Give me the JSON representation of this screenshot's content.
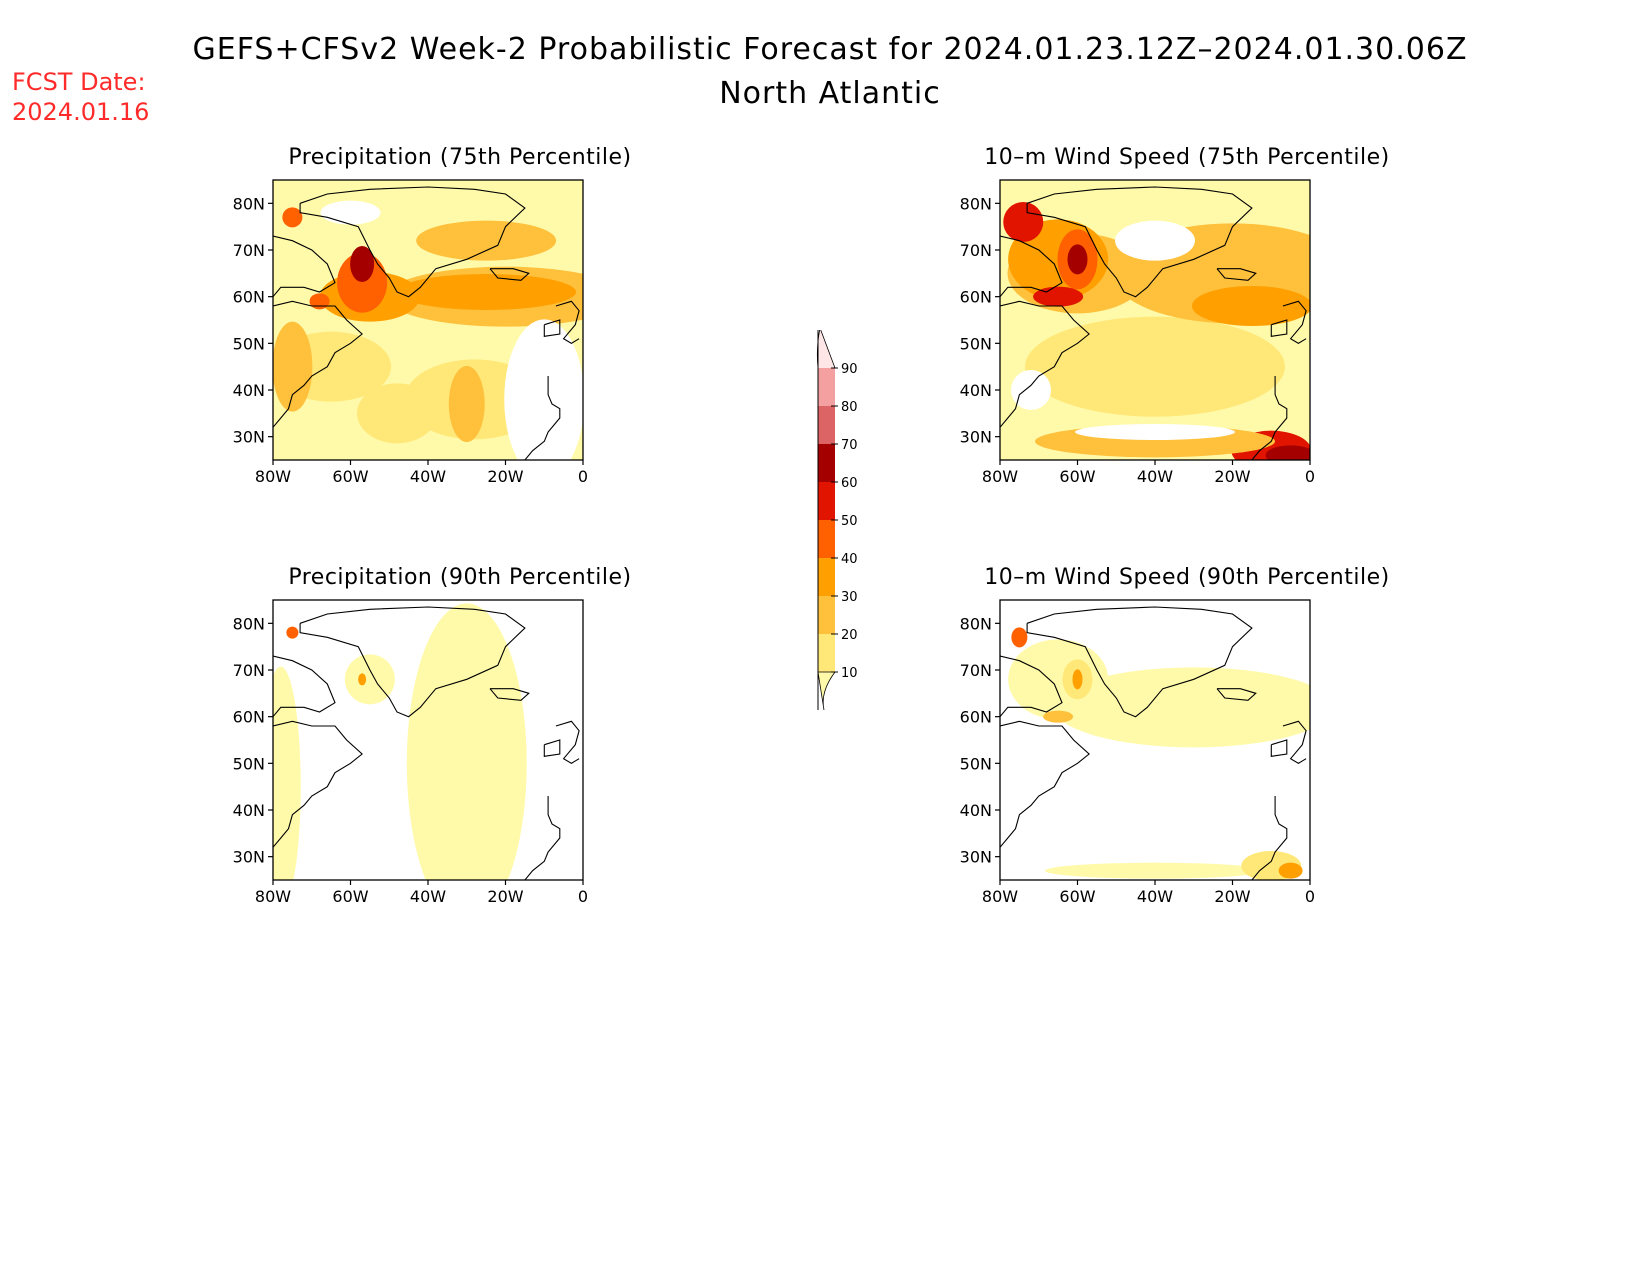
{
  "title": "GEFS+CFSv2 Week-2 Probabilistic Forecast for 2024.01.23.12Z–2024.01.30.06Z",
  "subtitle": "North Atlantic",
  "fcst_label": "FCST Date:",
  "fcst_date": "2024.01.16",
  "lat_ticks": [
    "80N",
    "70N",
    "60N",
    "50N",
    "40N",
    "30N"
  ],
  "lon_ticks": [
    "80W",
    "60W",
    "40W",
    "20W",
    "0"
  ],
  "colorbar": {
    "levels": [
      "10",
      "20",
      "30",
      "40",
      "50",
      "60",
      "70",
      "80",
      "90"
    ],
    "colors": [
      "#fffaaa",
      "#ffe878",
      "#ffc03c",
      "#ffa000",
      "#ff6000",
      "#e11400",
      "#a50000",
      "#dc6464",
      "#f5a0a0",
      "#ffe6e6"
    ]
  },
  "panels": [
    {
      "title": "Precipitation (75th Percentile)",
      "intensity": "high"
    },
    {
      "title": "10–m Wind Speed (75th Percentile)",
      "intensity": "high"
    },
    {
      "title": "Precipitation (90th Percentile)",
      "intensity": "low"
    },
    {
      "title": "10–m Wind Speed (90th Percentile)",
      "intensity": "low"
    }
  ]
}
